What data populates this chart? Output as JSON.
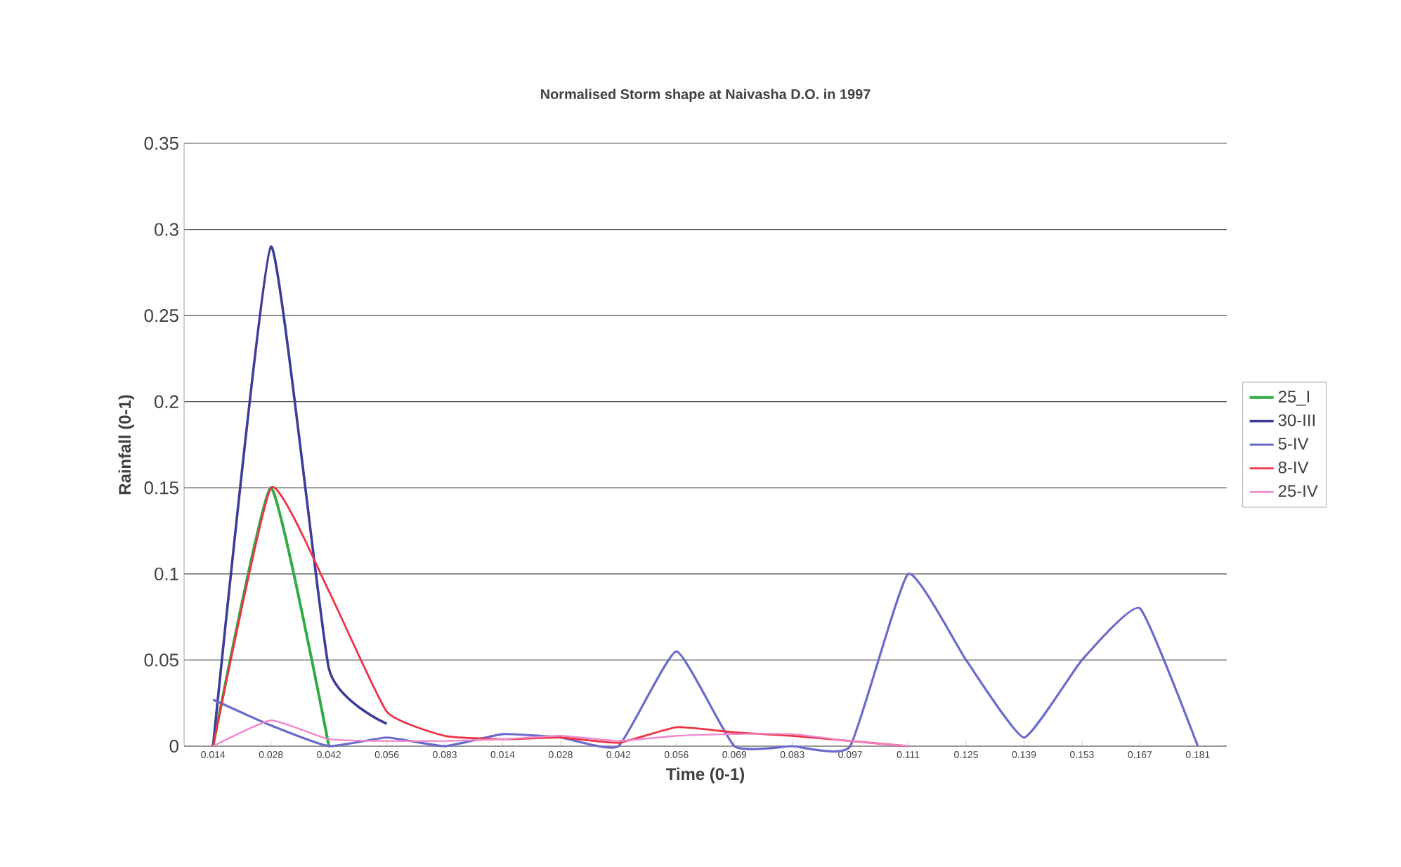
{
  "chart_data": {
    "type": "line",
    "title": "Normalised Storm shape at Naivasha D.O. in 1997",
    "xlabel": "Time (0-1)",
    "ylabel": "Rainfall (0-1)",
    "categories": [
      "0.014",
      "0.028",
      "0.042",
      "0.056",
      "0.083",
      "0.014",
      "0.028",
      "0.042",
      "0.056",
      "0.069",
      "0.083",
      "0.097",
      "0.111",
      "0.125",
      "0.139",
      "0.153",
      "0.167",
      "0.181"
    ],
    "series": [
      {
        "name": "25_I",
        "color": "#33aa44",
        "values": [
          0,
          0.15,
          0,
          null,
          null,
          null,
          null,
          null,
          null,
          null,
          null,
          null,
          null,
          null,
          null,
          null,
          null,
          null
        ]
      },
      {
        "name": "30-III",
        "color": "#3c3c99",
        "values": [
          0,
          0.29,
          0.045,
          0.013,
          null,
          null,
          null,
          null,
          null,
          null,
          null,
          null,
          null,
          null,
          null,
          null,
          null,
          null
        ]
      },
      {
        "name": "5-IV",
        "color": "#6a6acc",
        "values": [
          0.027,
          0.012,
          0,
          0.005,
          0,
          0.007,
          0.005,
          0,
          0.055,
          0,
          0,
          0,
          0.1,
          0.05,
          0.005,
          0.05,
          0.08,
          0
        ]
      },
      {
        "name": "8-IV",
        "color": "#ee3344",
        "values": [
          0,
          0.15,
          0.09,
          0.02,
          0.006,
          0.004,
          0.005,
          0.002,
          0.011,
          0.008,
          0.006,
          0.003,
          0,
          null,
          null,
          null,
          null,
          null
        ]
      },
      {
        "name": "25-IV",
        "color": "#ee88cc",
        "values": [
          0,
          0.015,
          0.004,
          0.003,
          0.003,
          0.004,
          0.006,
          0.003,
          0.006,
          0.007,
          0.007,
          0.003,
          0,
          null,
          null,
          null,
          null,
          null
        ]
      }
    ],
    "ylim": [
      0,
      0.35
    ],
    "yticks": [
      0,
      0.05,
      0.1,
      0.15,
      0.2,
      0.25,
      0.3,
      0.35
    ],
    "grid": "y",
    "legend": "right",
    "marker": "none",
    "line_style": "solid"
  }
}
